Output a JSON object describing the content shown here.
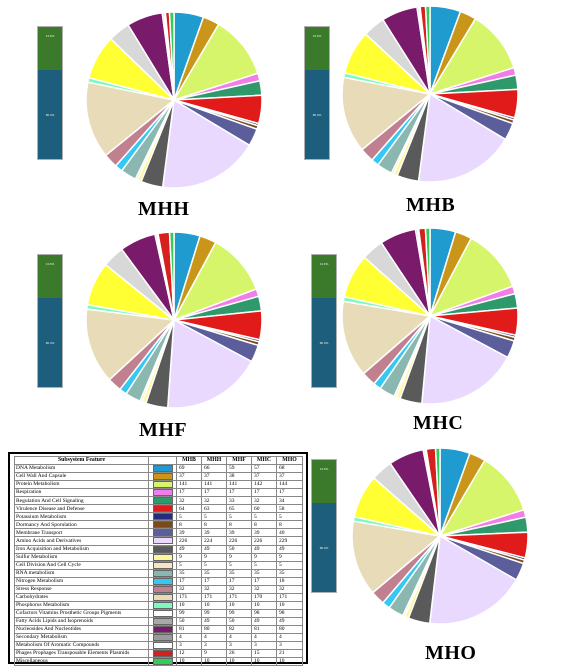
{
  "bar_labels": {
    "top": "13.6%",
    "bottom": "86.4%"
  },
  "table": {
    "headers": [
      "Subsystem Feature",
      "",
      "MHB",
      "MHH",
      "MHF",
      "MHC",
      "MHO"
    ]
  },
  "chart_data": {
    "type": "pie",
    "colors": [
      "#1f9bd0",
      "#c9961a",
      "#d6f56a",
      "#f07de8",
      "#2e9a6b",
      "#e11a1a",
      "#262b7e",
      "#7a4a1a",
      "#111111",
      "#5b5e9a",
      "#e9d9ff",
      "#5a5a5a",
      "#f7e7c0",
      "#fff89a",
      "#8ab8b0",
      "#34c8f2",
      "#7a9a7a",
      "#c08090",
      "#e8dcb8",
      "#7dfabf",
      "#a9a9a9",
      "#ff5050",
      "#5b5fb5",
      "#4b5ea0",
      "#f3f31a",
      "#8a1a2a",
      "#ff8a1a"
    ],
    "categories": [
      "DNA Metabolism",
      "Cell Wall And Capsule",
      "Protein Metabolism",
      "Respiration",
      "Regulation And Cell Signaling",
      "Virulence Disease and Defense",
      "Potassium Metabolism",
      "Dormancy And Sporulation",
      "Membrane Transport",
      "Amino Acids and Derivatives",
      "Iron Acquisition and Metabolism",
      "Sulfur Metabolism",
      "Cell Division And Cell Cycle",
      "RNA metabolism",
      "Nitrogen Metabolism",
      "Stress Response",
      "Carbohydrates",
      "Phosphorus Metabolism",
      "Cofactors Vitamins Prosthetic Groups Pigments",
      "Fatty Acids Lipids and Isoprenoids",
      "Nucleosides And Nucleotides",
      "Secondary Metabolism",
      "Metabolism Of Aromatic Compounds",
      "Phages Prophages Transposable Elements Plasmids",
      "Miscellaneous"
    ],
    "swatch_colors": [
      "#1f9bd0",
      "#c9961a",
      "#d6f56a",
      "#f07de8",
      "#2e9a6b",
      "#e11a1a",
      "#262b7e",
      "#7a4a1a",
      "#5b5e9a",
      "#e9d9ff",
      "#5a5a5a",
      "#fff89a",
      "#f7e7c0",
      "#8ab8b0",
      "#34c8f2",
      "#c08090",
      "#e8dcb8",
      "#7dfabf",
      "#ffffff",
      "#a9a9a9",
      "#7a1a6a",
      "#9a9a9a",
      "#ffffff",
      "#d62020",
      "#33cc55"
    ],
    "charts": [
      {
        "name": "MHH",
        "values": [
          66,
          37,
          141,
          17,
          32,
          63,
          5,
          8,
          39,
          224,
          49,
          9,
          5,
          35,
          17,
          32,
          171,
          10,
          99,
          49,
          80,
          4,
          3,
          9,
          10
        ]
      },
      {
        "name": "MHB",
        "values": [
          69,
          37,
          141,
          17,
          32,
          64,
          5,
          8,
          39,
          226,
          49,
          9,
          5,
          35,
          17,
          32,
          171,
          10,
          99,
          50,
          81,
          4,
          3,
          12,
          10
        ]
      },
      {
        "name": "MHF",
        "values": [
          59,
          38,
          141,
          17,
          33,
          65,
          5,
          8,
          39,
          226,
          50,
          9,
          5,
          35,
          17,
          32,
          171,
          10,
          99,
          50,
          82,
          4,
          3,
          26,
          10
        ]
      },
      {
        "name": "MHC",
        "values": [
          57,
          37,
          142,
          17,
          32,
          60,
          5,
          8,
          39,
          226,
          49,
          9,
          5,
          35,
          17,
          32,
          170,
          10,
          98,
          49,
          81,
          4,
          3,
          15,
          10
        ]
      },
      {
        "name": "MHO",
        "values": [
          68,
          37,
          144,
          17,
          34,
          58,
          5,
          8,
          40,
          229,
          49,
          9,
          5,
          35,
          18,
          32,
          171,
          10,
          98,
          49,
          80,
          4,
          3,
          21,
          10
        ]
      }
    ]
  }
}
